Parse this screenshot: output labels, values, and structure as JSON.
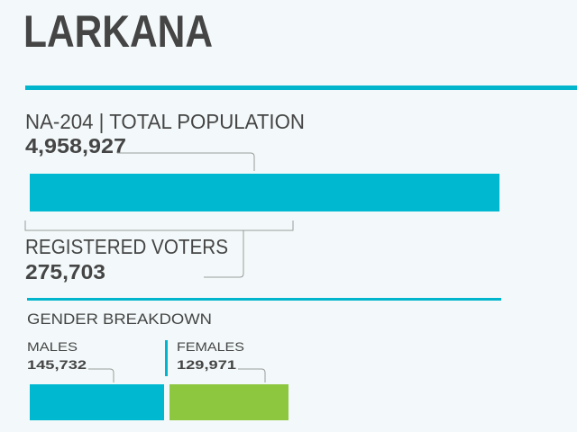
{
  "header": {
    "title": "LARKANA"
  },
  "population": {
    "label": "NA-204 | TOTAL POPULATION",
    "value": "4,958,927"
  },
  "voters": {
    "label": "REGISTERED VOTERS",
    "value": "275,703"
  },
  "gender": {
    "title": "GENDER BREAKDOWN",
    "males": {
      "label": "MALES",
      "value": "145,732"
    },
    "females": {
      "label": "FEMALES",
      "value": "129,971"
    }
  }
}
